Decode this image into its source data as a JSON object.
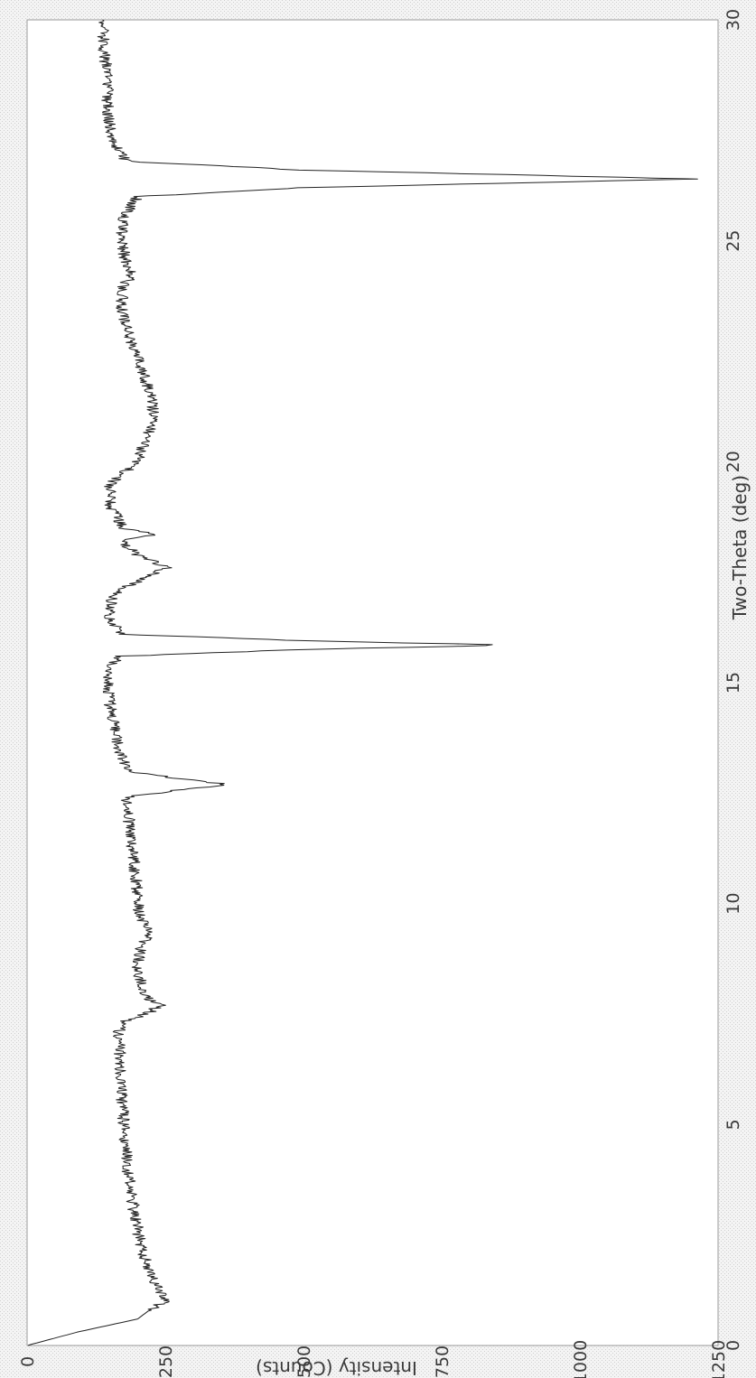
{
  "chart_data": {
    "type": "line",
    "title": "",
    "xlabel": "Two-Theta (deg)",
    "ylabel": "Intensity (Counts)",
    "xlim": [
      0,
      30
    ],
    "ylim": [
      0,
      1250
    ],
    "xticks": [
      "0",
      "5",
      "10",
      "15",
      "20",
      "25",
      "30"
    ],
    "yticks": [
      "0",
      "250",
      "500",
      "750",
      "1000",
      "1250"
    ],
    "grid": false,
    "orientation": "rotated-90-ccw",
    "colors": {
      "line": "#222222",
      "frame": "#9a9a9a",
      "plot_bg": "#ffffff",
      "fig_bg": "#e8e8e8"
    },
    "series": [
      {
        "points": [
          [
            0.0,
            0
          ],
          [
            0.3,
            90
          ],
          [
            0.6,
            200
          ],
          [
            0.9,
            232
          ],
          [
            1.0,
            252
          ],
          [
            1.5,
            226
          ],
          [
            2.0,
            213
          ],
          [
            2.5,
            202
          ],
          [
            3.0,
            194
          ],
          [
            3.5,
            188
          ],
          [
            4.0,
            182
          ],
          [
            4.5,
            178
          ],
          [
            5.0,
            175
          ],
          [
            5.5,
            172
          ],
          [
            6.0,
            170
          ],
          [
            6.5,
            168
          ],
          [
            7.0,
            166
          ],
          [
            7.3,
            168
          ],
          [
            7.5,
            215
          ],
          [
            7.7,
            240
          ],
          [
            7.9,
            215
          ],
          [
            8.1,
            210
          ],
          [
            8.5,
            200
          ],
          [
            9.0,
            205
          ],
          [
            9.3,
            222
          ],
          [
            9.6,
            208
          ],
          [
            10.0,
            200
          ],
          [
            10.5,
            198
          ],
          [
            11.0,
            193
          ],
          [
            11.5,
            188
          ],
          [
            12.0,
            183
          ],
          [
            12.4,
            178
          ],
          [
            12.55,
            260
          ],
          [
            12.7,
            360
          ],
          [
            12.85,
            260
          ],
          [
            13.0,
            180
          ],
          [
            13.5,
            166
          ],
          [
            14.0,
            158
          ],
          [
            14.5,
            150
          ],
          [
            15.0,
            148
          ],
          [
            15.4,
            150
          ],
          [
            15.6,
            170
          ],
          [
            15.75,
            500
          ],
          [
            15.85,
            875
          ],
          [
            15.95,
            500
          ],
          [
            16.1,
            170
          ],
          [
            16.5,
            150
          ],
          [
            17.0,
            155
          ],
          [
            17.3,
            200
          ],
          [
            17.6,
            252
          ],
          [
            17.9,
            200
          ],
          [
            18.2,
            170
          ],
          [
            18.35,
            235
          ],
          [
            18.5,
            175
          ],
          [
            19.0,
            150
          ],
          [
            19.5,
            150
          ],
          [
            19.8,
            180
          ],
          [
            20.0,
            200
          ],
          [
            20.5,
            215
          ],
          [
            21.0,
            230
          ],
          [
            21.5,
            225
          ],
          [
            22.0,
            210
          ],
          [
            22.5,
            195
          ],
          [
            23.0,
            180
          ],
          [
            23.5,
            170
          ],
          [
            24.0,
            175
          ],
          [
            24.2,
            190
          ],
          [
            24.5,
            180
          ],
          [
            25.0,
            170
          ],
          [
            25.5,
            175
          ],
          [
            26.0,
            200
          ],
          [
            26.2,
            500
          ],
          [
            26.4,
            1210
          ],
          [
            26.6,
            500
          ],
          [
            26.8,
            180
          ],
          [
            27.0,
            165
          ],
          [
            27.5,
            150
          ],
          [
            28.0,
            145
          ],
          [
            28.5,
            148
          ],
          [
            29.0,
            142
          ],
          [
            29.5,
            138
          ],
          [
            30.0,
            135
          ]
        ]
      }
    ]
  }
}
